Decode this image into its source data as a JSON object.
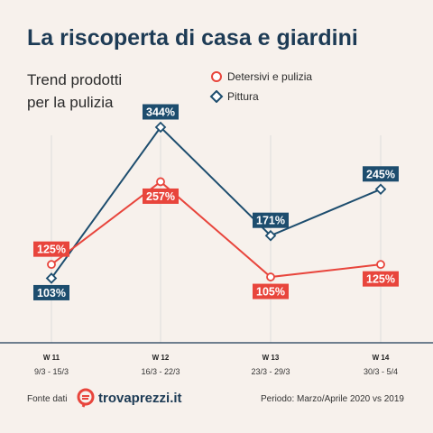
{
  "title": "La riscoperta di casa e giardini",
  "subtitle_lines": [
    "Trend prodotti",
    "per la pulizia"
  ],
  "colors": {
    "background": "#f7f1ec",
    "title": "#1d3b55",
    "series_red": "#e8453c",
    "series_blue": "#1d4d6e",
    "gridline": "#dddddd",
    "axis": "#1d3b55"
  },
  "footer": {
    "source_label": "Fonte dati",
    "logo_text": "trovaprezzi.it",
    "logo_icon": "trovaprezzi-logo-icon",
    "period": "Periodo: Marzo/Aprile 2020 vs 2019"
  },
  "chart_data": {
    "type": "line",
    "categories": [
      "W 11",
      "W 12",
      "W 13",
      "W 14"
    ],
    "category_dates": [
      "9/3 - 15/3",
      "16/3 - 22/3",
      "23/3 - 29/3",
      "30/3 - 5/4"
    ],
    "series": [
      {
        "name": "Detersivi e pulizia",
        "marker": "circle",
        "color": "#e8453c",
        "values": [
          125,
          257,
          105,
          125
        ],
        "labels": [
          "125%",
          "257%",
          "105%",
          "125%"
        ]
      },
      {
        "name": "Pittura",
        "marker": "diamond",
        "color": "#1d4d6e",
        "values": [
          103,
          344,
          171,
          245
        ],
        "labels": [
          "103%",
          "344%",
          "171%",
          "245%"
        ]
      }
    ],
    "ylim": [
      0,
      380
    ],
    "grid": false,
    "legend_position": "top-right"
  }
}
